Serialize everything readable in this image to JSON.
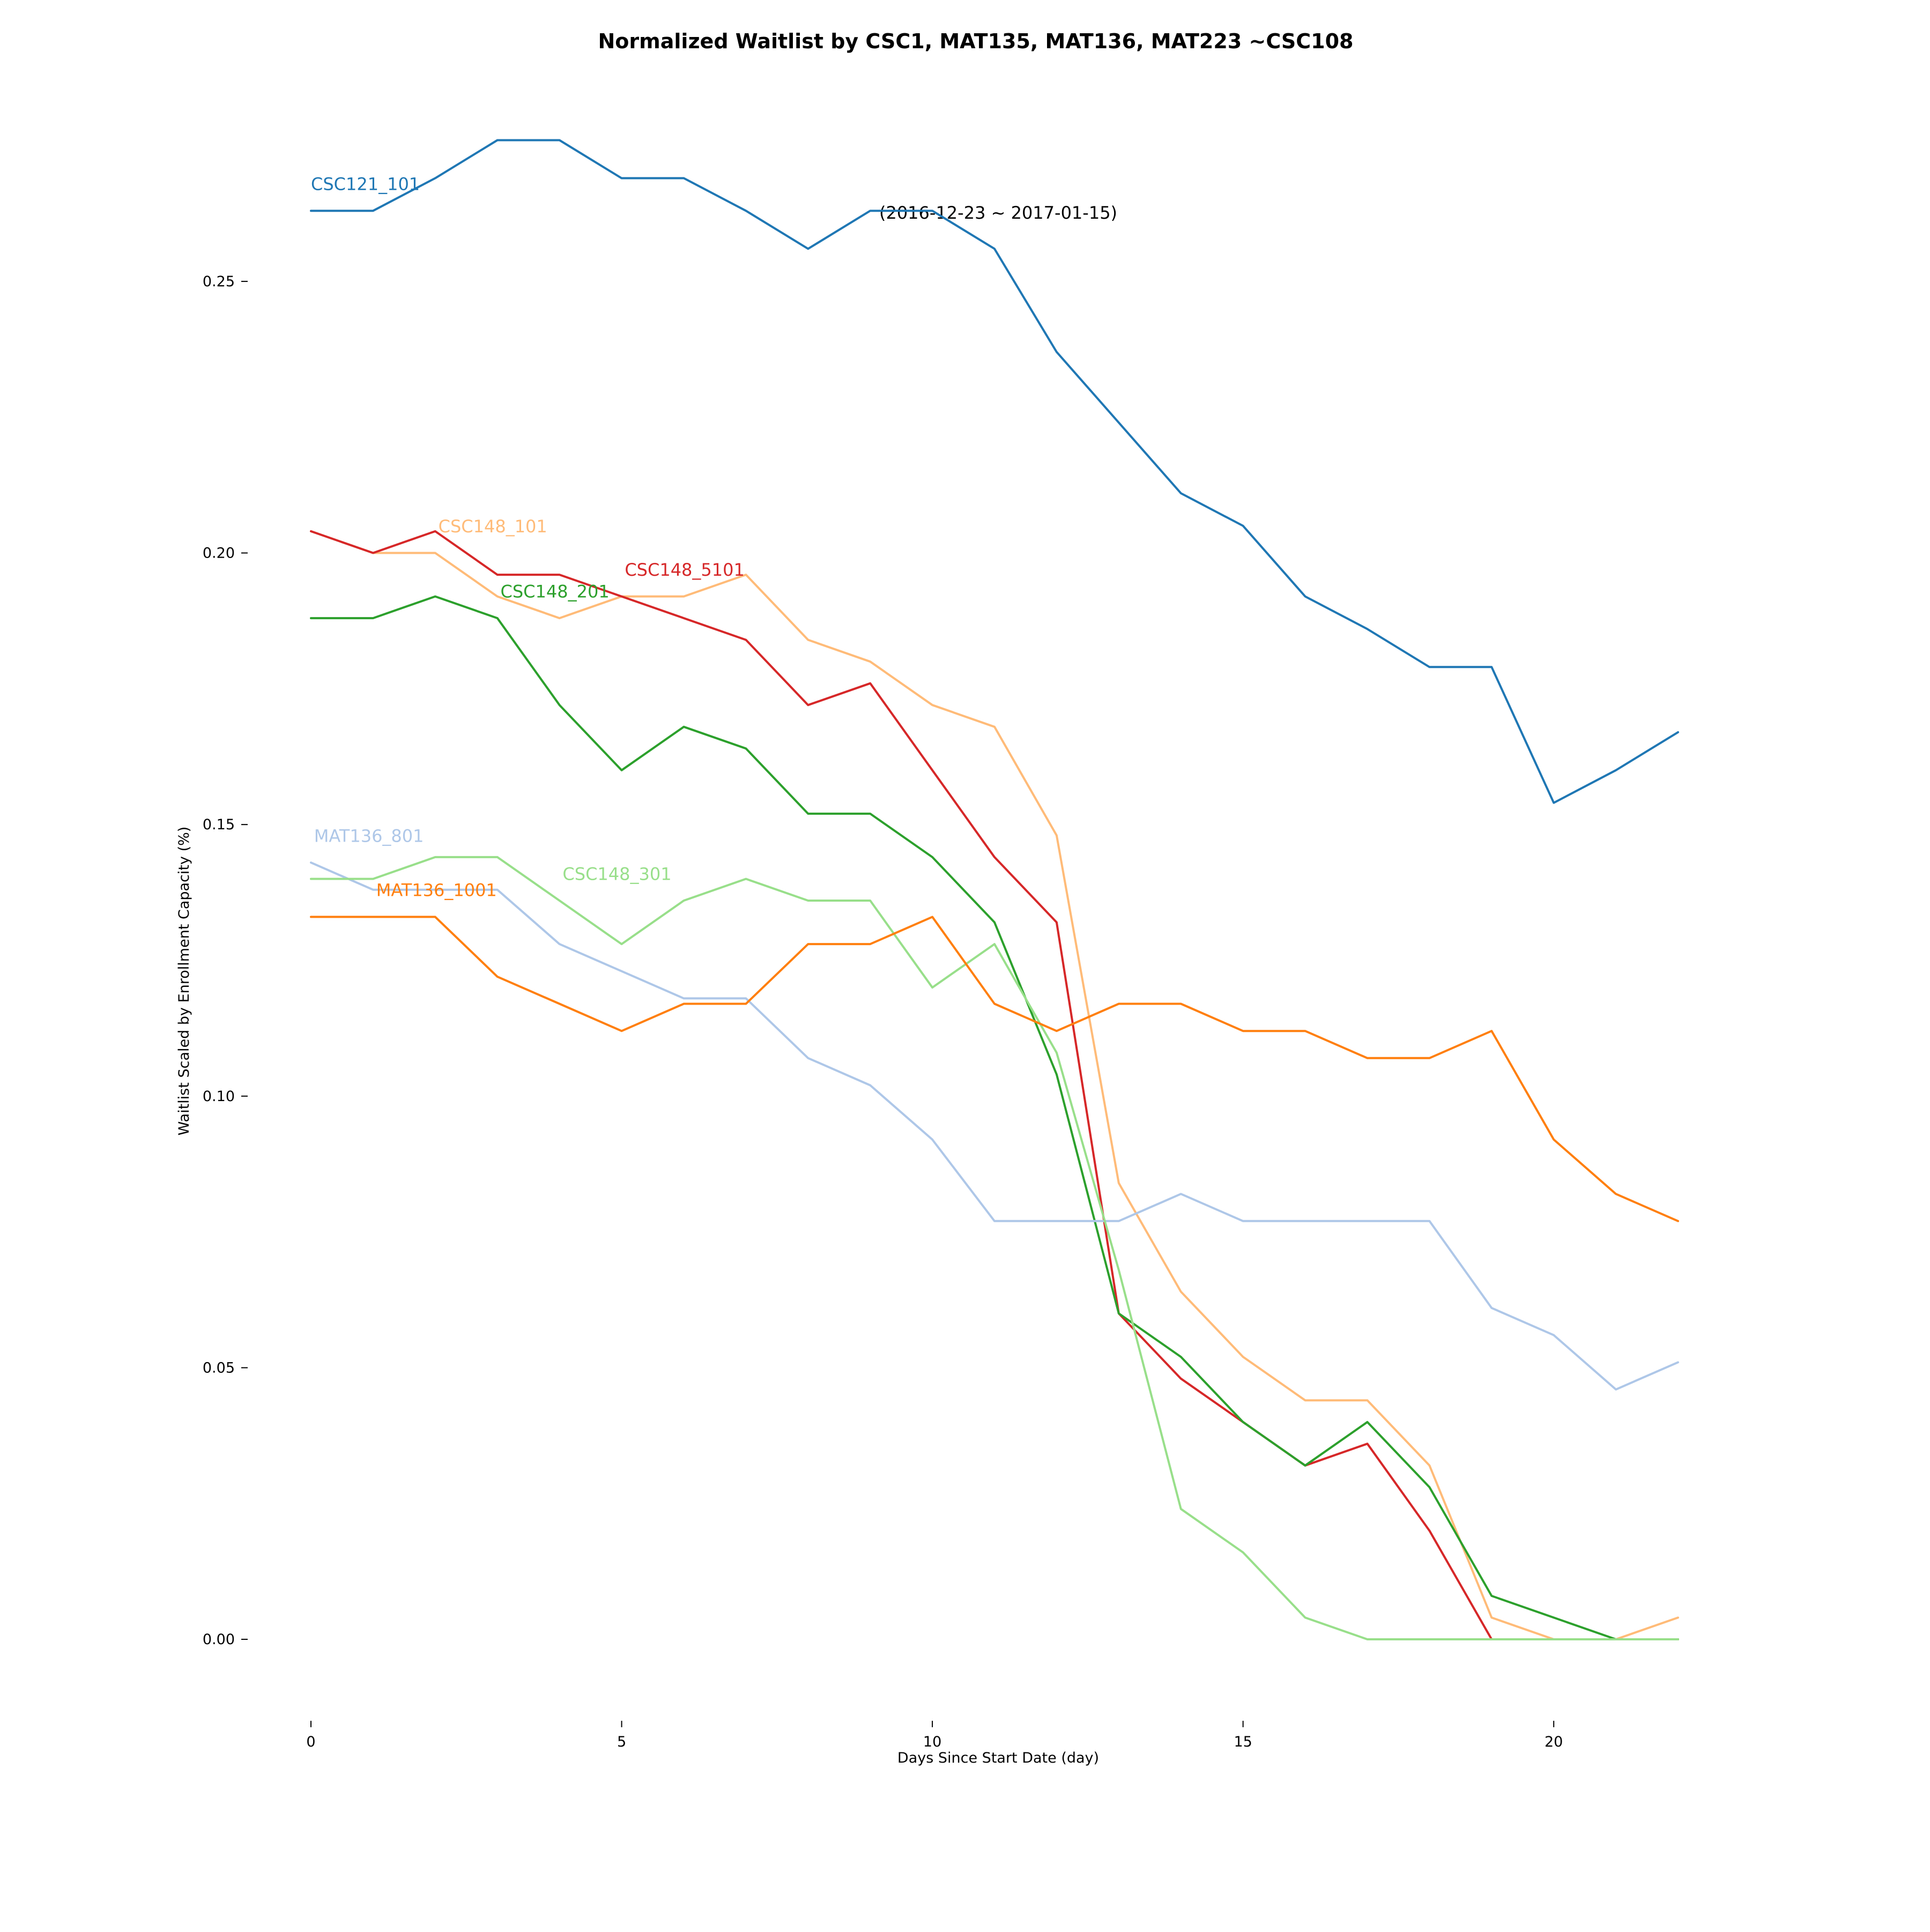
{
  "chart_data": {
    "type": "line",
    "title": "Normalized Waitlist by CSC1, MAT135, MAT136, MAT223 ~CSC108",
    "subtitle": "(2016-12-23 ~ 2017-01-15)",
    "xlabel": "Days Since Start Date (day)",
    "ylabel": "Waitlist Scaled by Enrollment Capacity (%)",
    "xlim": [
      0,
      22
    ],
    "ylim": [
      -0.015,
      0.287
    ],
    "xticks": [
      0,
      5,
      10,
      15,
      20
    ],
    "xtick_labels": [
      "0",
      "5",
      "10",
      "15",
      "20"
    ],
    "yticks": [
      0.0,
      0.05,
      0.1,
      0.15,
      0.2,
      0.25
    ],
    "ytick_labels": [
      "0.00",
      "0.05",
      "0.10",
      "0.15",
      "0.20",
      "0.25"
    ],
    "grid": false,
    "legend": "inline labels at line starts",
    "x": [
      0,
      1,
      2,
      3,
      4,
      5,
      6,
      7,
      8,
      9,
      10,
      11,
      12,
      13,
      14,
      15,
      16,
      17,
      18,
      19,
      20,
      21,
      22
    ],
    "series": [
      {
        "name": "CSC121_101",
        "color": "#1f77b4",
        "label_x": 0,
        "label_y": 0.268,
        "values": [
          0.263,
          0.263,
          0.269,
          0.276,
          0.276,
          0.269,
          0.269,
          0.263,
          0.256,
          0.263,
          0.263,
          0.256,
          0.237,
          0.224,
          0.211,
          0.205,
          0.192,
          0.186,
          0.179,
          0.179,
          0.154,
          0.16,
          0.167
        ]
      },
      {
        "name": "CSC148_101",
        "color": "#ffbb78",
        "label_x": 2.05,
        "label_y": 0.205,
        "values": [
          0.204,
          0.2,
          0.2,
          0.192,
          0.188,
          0.192,
          0.192,
          0.196,
          0.184,
          0.18,
          0.172,
          0.168,
          0.148,
          0.084,
          0.064,
          0.052,
          0.044,
          0.044,
          0.032,
          0.004,
          0.0,
          0.0,
          0.004
        ]
      },
      {
        "name": "CSC148_5101",
        "color": "#d62728",
        "label_x": 5.05,
        "label_y": 0.197,
        "values": [
          0.204,
          0.2,
          0.204,
          0.196,
          0.196,
          0.192,
          0.188,
          0.184,
          0.172,
          0.176,
          0.16,
          0.144,
          0.132,
          0.06,
          0.048,
          0.04,
          0.032,
          0.036,
          0.02,
          0.0,
          0.0,
          0.0,
          0.0
        ]
      },
      {
        "name": "CSC148_201",
        "color": "#2ca02c",
        "label_x": 3.05,
        "label_y": 0.193,
        "values": [
          0.188,
          0.188,
          0.192,
          0.188,
          0.172,
          0.16,
          0.168,
          0.164,
          0.152,
          0.152,
          0.144,
          0.132,
          0.104,
          0.06,
          0.052,
          0.04,
          0.032,
          0.04,
          0.028,
          0.008,
          0.004,
          0.0,
          0.0
        ]
      },
      {
        "name": "MAT136_801",
        "color": "#aec7e8",
        "label_x": 0.05,
        "label_y": 0.148,
        "values": [
          0.143,
          0.138,
          0.138,
          0.138,
          0.128,
          0.123,
          0.118,
          0.118,
          0.107,
          0.102,
          0.092,
          0.077,
          0.077,
          0.077,
          0.082,
          0.077,
          0.077,
          0.077,
          0.077,
          0.061,
          0.056,
          0.046,
          0.051
        ]
      },
      {
        "name": "CSC148_301",
        "color": "#98df8a",
        "label_x": 4.05,
        "label_y": 0.141,
        "values": [
          0.14,
          0.14,
          0.144,
          0.144,
          0.136,
          0.128,
          0.136,
          0.14,
          0.136,
          0.136,
          0.12,
          0.128,
          0.108,
          0.068,
          0.024,
          0.016,
          0.004,
          0.0,
          0.0,
          0.0,
          0.0,
          0.0,
          0.0
        ]
      },
      {
        "name": "MAT136_1001",
        "color": "#ff7f0e",
        "label_x": 1.05,
        "label_y": 0.138,
        "values": [
          0.133,
          0.133,
          0.133,
          0.122,
          0.117,
          0.112,
          0.117,
          0.117,
          0.128,
          0.128,
          0.133,
          0.117,
          0.112,
          0.117,
          0.117,
          0.112,
          0.112,
          0.107,
          0.107,
          0.112,
          0.092,
          0.082,
          0.077
        ]
      }
    ]
  }
}
